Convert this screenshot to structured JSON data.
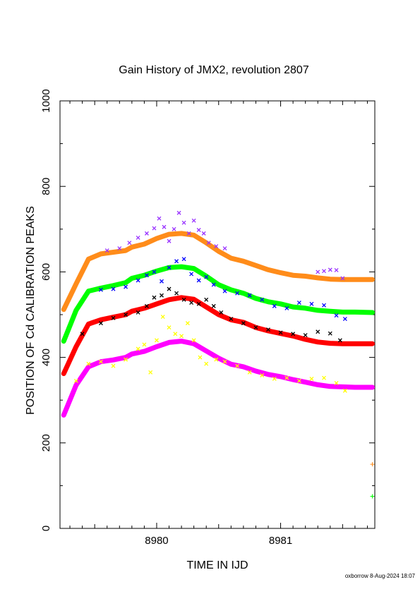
{
  "chart_data": {
    "type": "scatter",
    "title": "Gain History of JMX2, revolution 2807",
    "xlabel": "TIME IN IJD",
    "ylabel": "POSITION OF Cd CALIBRATION PEAKS",
    "footer": "oxborrow  8-Aug-2024 18:07",
    "xlim": [
      8979.22,
      8981.76
    ],
    "ylim": [
      0,
      1000
    ],
    "x_ticks": [
      8980,
      8981
    ],
    "x_tick_labels": [
      "8980",
      "8981"
    ],
    "y_ticks": [
      0,
      200,
      400,
      600,
      800,
      1000
    ],
    "y_tick_labels": [
      "0",
      "200",
      "400",
      "600",
      "800",
      "1000"
    ],
    "grid": false,
    "series": [
      {
        "color": "#ff8c1a",
        "role": "fit",
        "x": [
          8979.25,
          8979.35,
          8979.45,
          8979.55,
          8979.65,
          8979.75,
          8979.8,
          8979.9,
          8980.0,
          8980.1,
          8980.2,
          8980.3,
          8980.4,
          8980.5,
          8980.6,
          8980.7,
          8980.8,
          8980.9,
          8981.0,
          8981.1,
          8981.2,
          8981.3,
          8981.4,
          8981.5,
          8981.6,
          8981.74
        ],
        "y": [
          512,
          572,
          630,
          642,
          646,
          650,
          658,
          665,
          678,
          688,
          690,
          686,
          668,
          648,
          632,
          625,
          615,
          605,
          598,
          592,
          590,
          586,
          583,
          582,
          582,
          582
        ]
      },
      {
        "color": "#00ff00",
        "role": "fit",
        "x": [
          8979.25,
          8979.35,
          8979.45,
          8979.55,
          8979.65,
          8979.75,
          8979.8,
          8979.9,
          8980.0,
          8980.1,
          8980.2,
          8980.3,
          8980.4,
          8980.5,
          8980.6,
          8980.7,
          8980.8,
          8980.9,
          8981.0,
          8981.1,
          8981.2,
          8981.3,
          8981.4,
          8981.5,
          8981.6,
          8981.74
        ],
        "y": [
          438,
          510,
          555,
          562,
          568,
          575,
          585,
          592,
          602,
          610,
          612,
          608,
          590,
          570,
          558,
          550,
          538,
          530,
          525,
          518,
          515,
          510,
          508,
          506,
          506,
          505
        ]
      },
      {
        "color": "#ff0000",
        "role": "fit",
        "x": [
          8979.25,
          8979.35,
          8979.45,
          8979.55,
          8979.65,
          8979.75,
          8979.8,
          8979.9,
          8980.0,
          8980.1,
          8980.2,
          8980.3,
          8980.4,
          8980.5,
          8980.6,
          8980.7,
          8980.8,
          8980.9,
          8981.0,
          8981.1,
          8981.2,
          8981.3,
          8981.4,
          8981.5,
          8981.6,
          8981.74
        ],
        "y": [
          362,
          425,
          478,
          488,
          494,
          500,
          508,
          515,
          525,
          535,
          540,
          536,
          518,
          500,
          488,
          482,
          470,
          462,
          456,
          450,
          442,
          436,
          433,
          432,
          432,
          432
        ]
      },
      {
        "color": "#ff00ff",
        "role": "fit",
        "x": [
          8979.25,
          8979.35,
          8979.45,
          8979.55,
          8979.65,
          8979.75,
          8979.8,
          8979.9,
          8980.0,
          8980.1,
          8980.2,
          8980.3,
          8980.4,
          8980.5,
          8980.6,
          8980.7,
          8980.8,
          8980.9,
          8981.0,
          8981.1,
          8981.2,
          8981.3,
          8981.4,
          8981.5,
          8981.6,
          8981.74
        ],
        "y": [
          265,
          335,
          378,
          390,
          394,
          400,
          408,
          414,
          425,
          435,
          438,
          432,
          415,
          398,
          384,
          378,
          368,
          360,
          355,
          348,
          342,
          336,
          332,
          331,
          330,
          330
        ]
      },
      {
        "color": "#9933ff",
        "role": "points",
        "x": [
          8979.6,
          8979.7,
          8979.78,
          8979.85,
          8979.92,
          8979.98,
          8980.02,
          8980.06,
          8980.1,
          8980.14,
          8980.18,
          8980.22,
          8980.26,
          8980.3,
          8980.34,
          8980.38,
          8980.42,
          8980.48,
          8980.55,
          8981.3,
          8981.35,
          8981.4,
          8981.45,
          8981.5
        ],
        "y": [
          650,
          655,
          668,
          680,
          690,
          702,
          725,
          705,
          672,
          700,
          738,
          715,
          690,
          720,
          698,
          690,
          668,
          660,
          655,
          600,
          602,
          605,
          604,
          585
        ]
      },
      {
        "color": "#0000ff",
        "role": "points",
        "x": [
          8979.55,
          8979.65,
          8979.75,
          8979.85,
          8979.92,
          8979.98,
          8980.04,
          8980.1,
          8980.16,
          8980.22,
          8980.28,
          8980.34,
          8980.4,
          8980.46,
          8980.55,
          8980.65,
          8980.75,
          8980.85,
          8980.95,
          8981.05,
          8981.15,
          8981.25,
          8981.35,
          8981.45,
          8981.52
        ],
        "y": [
          558,
          560,
          565,
          580,
          592,
          600,
          578,
          610,
          625,
          630,
          595,
          580,
          588,
          570,
          555,
          550,
          545,
          535,
          520,
          515,
          528,
          525,
          522,
          498,
          490
        ]
      },
      {
        "color": "#000000",
        "role": "points",
        "x": [
          8979.4,
          8979.55,
          8979.65,
          8979.75,
          8979.85,
          8979.92,
          8979.98,
          8980.04,
          8980.1,
          8980.16,
          8980.22,
          8980.28,
          8980.34,
          8980.4,
          8980.46,
          8980.52,
          8980.6,
          8980.7,
          8980.8,
          8980.9,
          8981.0,
          8981.1,
          8981.2,
          8981.3,
          8981.4,
          8981.48
        ],
        "y": [
          455,
          480,
          492,
          500,
          505,
          520,
          540,
          545,
          560,
          550,
          535,
          528,
          525,
          535,
          520,
          505,
          490,
          480,
          470,
          465,
          458,
          455,
          452,
          460,
          456,
          440
        ]
      },
      {
        "color": "#ffff00",
        "role": "points",
        "x": [
          8979.35,
          8979.45,
          8979.55,
          8979.65,
          8979.75,
          8979.85,
          8979.9,
          8979.95,
          8980.0,
          8980.05,
          8980.1,
          8980.15,
          8980.2,
          8980.25,
          8980.3,
          8980.35,
          8980.4,
          8980.48,
          8980.55,
          8980.65,
          8980.75,
          8980.85,
          8980.95,
          8981.05,
          8981.15,
          8981.25,
          8981.35,
          8981.45,
          8981.52
        ],
        "y": [
          345,
          385,
          390,
          380,
          395,
          420,
          430,
          365,
          440,
          495,
          470,
          455,
          450,
          480,
          440,
          400,
          385,
          395,
          390,
          380,
          365,
          358,
          350,
          352,
          345,
          350,
          352,
          340,
          322
        ]
      },
      {
        "color": "#ff8c1a",
        "role": "outlier",
        "x": [
          8981.74
        ],
        "y": [
          150
        ]
      },
      {
        "color": "#00ff00",
        "role": "outlier",
        "x": [
          8981.74
        ],
        "y": [
          75
        ]
      }
    ]
  }
}
